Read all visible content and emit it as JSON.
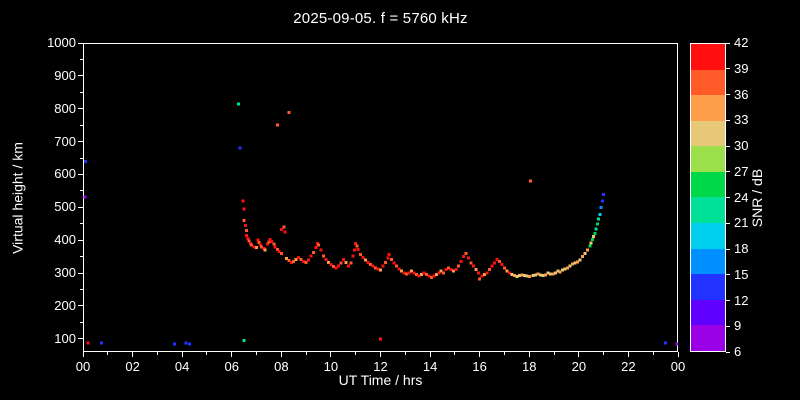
{
  "title": "2025-09-05. f = 5760 kHz",
  "colors": {
    "background": "#000000",
    "foreground": "#ffffff"
  },
  "chart_data": {
    "type": "scatter",
    "title": "2025-09-05. f = 5760 kHz",
    "xlabel": "UT Time / hrs",
    "ylabel": "Virtual height / km",
    "colorbar_label": "SNR / dB",
    "xlim": [
      0,
      24
    ],
    "ylim": [
      60,
      1000
    ],
    "grid": false,
    "x_ticks": {
      "values": [
        0,
        2,
        4,
        6,
        8,
        10,
        12,
        14,
        16,
        18,
        20,
        22,
        24
      ],
      "labels": [
        "00",
        "02",
        "04",
        "06",
        "08",
        "10",
        "12",
        "14",
        "16",
        "18",
        "20",
        "22",
        "00"
      ],
      "minor": [
        1,
        3,
        5,
        7,
        9,
        11,
        13,
        15,
        17,
        19,
        21,
        23
      ]
    },
    "y_ticks": {
      "values": [
        100,
        200,
        300,
        400,
        500,
        600,
        700,
        800,
        900,
        1000
      ],
      "labels": [
        "100",
        "200",
        "300",
        "400",
        "500",
        "600",
        "700",
        "800",
        "900",
        "1000"
      ],
      "minor": [
        150,
        250,
        350,
        450,
        550,
        650,
        750,
        850,
        950
      ]
    },
    "colorbar": {
      "min": 6,
      "max": 42,
      "tick_values": [
        6,
        9,
        12,
        15,
        18,
        21,
        24,
        27,
        30,
        33,
        36,
        39,
        42
      ],
      "tick_labels": [
        "6",
        "9",
        "12",
        "15",
        "18",
        "21",
        "24",
        "27",
        "30",
        "33",
        "36",
        "39",
        "42"
      ],
      "segments": [
        {
          "from": 6,
          "to": 9,
          "color": "#9a00e6"
        },
        {
          "from": 9,
          "to": 12,
          "color": "#6000ff"
        },
        {
          "from": 12,
          "to": 15,
          "color": "#2233ff"
        },
        {
          "from": 15,
          "to": 18,
          "color": "#0090ff"
        },
        {
          "from": 18,
          "to": 21,
          "color": "#00cfee"
        },
        {
          "from": 21,
          "to": 24,
          "color": "#00e096"
        },
        {
          "from": 24,
          "to": 27,
          "color": "#00d84a"
        },
        {
          "from": 27,
          "to": 30,
          "color": "#9be04a"
        },
        {
          "from": 30,
          "to": 33,
          "color": "#e6c878"
        },
        {
          "from": 33,
          "to": 36,
          "color": "#ff9e4a"
        },
        {
          "from": 36,
          "to": 39,
          "color": "#ff5a28"
        },
        {
          "from": 39,
          "to": 42,
          "color": "#ff0f0f"
        }
      ]
    },
    "points": [
      [
        0.08,
        532,
        8
      ],
      [
        0.1,
        640,
        14
      ],
      [
        0.2,
        88,
        40
      ],
      [
        0.75,
        88,
        13
      ],
      [
        3.7,
        85,
        13
      ],
      [
        4.15,
        88,
        13
      ],
      [
        4.3,
        85,
        13
      ],
      [
        6.28,
        815,
        22
      ],
      [
        6.33,
        680,
        13
      ],
      [
        6.5,
        95,
        21
      ],
      [
        7.85,
        750,
        36
      ],
      [
        8.3,
        788,
        38
      ],
      [
        12.0,
        100,
        40
      ],
      [
        18.05,
        580,
        37
      ],
      [
        23.5,
        88,
        13
      ],
      [
        23.95,
        85,
        7
      ],
      [
        6.45,
        520,
        40
      ],
      [
        6.5,
        495,
        40
      ],
      [
        6.5,
        460,
        38
      ],
      [
        6.55,
        445,
        40
      ],
      [
        6.6,
        430,
        37
      ],
      [
        6.6,
        415,
        40
      ],
      [
        6.65,
        405,
        40
      ],
      [
        6.7,
        398,
        38
      ],
      [
        6.75,
        390,
        40
      ],
      [
        6.8,
        385,
        37
      ],
      [
        6.9,
        380,
        40
      ],
      [
        7.0,
        378,
        34
      ],
      [
        7.05,
        400,
        40
      ],
      [
        7.1,
        393,
        37
      ],
      [
        7.15,
        385,
        40
      ],
      [
        7.2,
        380,
        37
      ],
      [
        7.3,
        375,
        40
      ],
      [
        7.35,
        370,
        34
      ],
      [
        7.45,
        388,
        40
      ],
      [
        7.5,
        395,
        37
      ],
      [
        7.55,
        402,
        40
      ],
      [
        7.6,
        396,
        40
      ],
      [
        7.7,
        388,
        37
      ],
      [
        7.75,
        380,
        40
      ],
      [
        7.85,
        372,
        37
      ],
      [
        7.9,
        365,
        40
      ],
      [
        8.0,
        360,
        37
      ],
      [
        8.0,
        432,
        40
      ],
      [
        8.1,
        440,
        38
      ],
      [
        8.15,
        425,
        40
      ],
      [
        8.2,
        345,
        34
      ],
      [
        8.3,
        338,
        37
      ],
      [
        8.4,
        332,
        40
      ],
      [
        8.5,
        336,
        37
      ],
      [
        8.6,
        342,
        34
      ],
      [
        8.7,
        347,
        40
      ],
      [
        8.8,
        342,
        37
      ],
      [
        8.9,
        336,
        40
      ],
      [
        9.0,
        332,
        37
      ],
      [
        9.1,
        340,
        40
      ],
      [
        9.2,
        352,
        40
      ],
      [
        9.3,
        362,
        38
      ],
      [
        9.4,
        378,
        40
      ],
      [
        9.45,
        390,
        40
      ],
      [
        9.5,
        385,
        37
      ],
      [
        9.6,
        370,
        40
      ],
      [
        9.7,
        352,
        37
      ],
      [
        9.8,
        342,
        40
      ],
      [
        9.9,
        332,
        34
      ],
      [
        10.0,
        326,
        40
      ],
      [
        10.1,
        320,
        37
      ],
      [
        10.2,
        316,
        40
      ],
      [
        10.3,
        321,
        40
      ],
      [
        10.4,
        330,
        37
      ],
      [
        10.5,
        342,
        40
      ],
      [
        10.6,
        333,
        34
      ],
      [
        10.7,
        322,
        40
      ],
      [
        10.8,
        330,
        37
      ],
      [
        10.9,
        352,
        40
      ],
      [
        10.95,
        370,
        40
      ],
      [
        11.0,
        390,
        40
      ],
      [
        11.05,
        382,
        38
      ],
      [
        11.1,
        372,
        40
      ],
      [
        11.2,
        357,
        37
      ],
      [
        11.3,
        347,
        40
      ],
      [
        11.4,
        340,
        34
      ],
      [
        11.5,
        332,
        40
      ],
      [
        11.6,
        326,
        37
      ],
      [
        11.7,
        321,
        40
      ],
      [
        11.8,
        316,
        37
      ],
      [
        11.9,
        312,
        40
      ],
      [
        12.0,
        310,
        34
      ],
      [
        12.1,
        322,
        40
      ],
      [
        12.2,
        332,
        37
      ],
      [
        12.3,
        346,
        40
      ],
      [
        12.35,
        356,
        40
      ],
      [
        12.45,
        342,
        37
      ],
      [
        12.55,
        330,
        40
      ],
      [
        12.65,
        321,
        37
      ],
      [
        12.75,
        312,
        40
      ],
      [
        12.85,
        306,
        34
      ],
      [
        12.95,
        301,
        40
      ],
      [
        13.05,
        297,
        37
      ],
      [
        13.15,
        301,
        40
      ],
      [
        13.25,
        306,
        34
      ],
      [
        13.35,
        301,
        40
      ],
      [
        13.45,
        296,
        37
      ],
      [
        13.55,
        291,
        40
      ],
      [
        13.65,
        296,
        34
      ],
      [
        13.75,
        301,
        40
      ],
      [
        13.85,
        296,
        37
      ],
      [
        13.95,
        291,
        40
      ],
      [
        14.05,
        287,
        37
      ],
      [
        14.15,
        291,
        40
      ],
      [
        14.25,
        296,
        34
      ],
      [
        14.35,
        301,
        40
      ],
      [
        14.45,
        306,
        34
      ],
      [
        14.55,
        301,
        37
      ],
      [
        14.65,
        311,
        40
      ],
      [
        14.75,
        316,
        37
      ],
      [
        14.85,
        311,
        40
      ],
      [
        14.95,
        306,
        34
      ],
      [
        15.05,
        311,
        40
      ],
      [
        15.15,
        321,
        37
      ],
      [
        15.25,
        336,
        40
      ],
      [
        15.35,
        351,
        40
      ],
      [
        15.45,
        360,
        38
      ],
      [
        15.55,
        346,
        40
      ],
      [
        15.65,
        331,
        37
      ],
      [
        15.75,
        321,
        40
      ],
      [
        15.85,
        311,
        34
      ],
      [
        15.95,
        301,
        40
      ],
      [
        16.0,
        282,
        37
      ],
      [
        16.1,
        291,
        40
      ],
      [
        16.2,
        296,
        34
      ],
      [
        16.3,
        301,
        40
      ],
      [
        16.4,
        311,
        37
      ],
      [
        16.5,
        321,
        40
      ],
      [
        16.6,
        331,
        40
      ],
      [
        16.7,
        341,
        40
      ],
      [
        16.8,
        336,
        38
      ],
      [
        16.9,
        326,
        40
      ],
      [
        17.0,
        316,
        37
      ],
      [
        17.1,
        306,
        34
      ],
      [
        17.2,
        301,
        40
      ],
      [
        17.3,
        296,
        31
      ],
      [
        17.4,
        293,
        34
      ],
      [
        17.5,
        290,
        31
      ],
      [
        17.6,
        292,
        31
      ],
      [
        17.7,
        295,
        34
      ],
      [
        17.8,
        293,
        31
      ],
      [
        17.9,
        291,
        31
      ],
      [
        18.0,
        290,
        34
      ],
      [
        18.15,
        292,
        31
      ],
      [
        18.25,
        295,
        31
      ],
      [
        18.35,
        297,
        34
      ],
      [
        18.45,
        295,
        31
      ],
      [
        18.55,
        293,
        31
      ],
      [
        18.65,
        295,
        34
      ],
      [
        18.75,
        300,
        31
      ],
      [
        18.85,
        298,
        31
      ],
      [
        18.95,
        297,
        34
      ],
      [
        19.05,
        301,
        31
      ],
      [
        19.15,
        306,
        31
      ],
      [
        19.25,
        304,
        34
      ],
      [
        19.35,
        309,
        31
      ],
      [
        19.45,
        313,
        31
      ],
      [
        19.55,
        316,
        34
      ],
      [
        19.65,
        321,
        31
      ],
      [
        19.75,
        327,
        34
      ],
      [
        19.85,
        330,
        31
      ],
      [
        19.95,
        334,
        34
      ],
      [
        20.05,
        340,
        31
      ],
      [
        20.15,
        350,
        34
      ],
      [
        20.25,
        360,
        31
      ],
      [
        20.35,
        370,
        34
      ],
      [
        20.45,
        383,
        25
      ],
      [
        20.5,
        392,
        31
      ],
      [
        20.55,
        402,
        25
      ],
      [
        20.6,
        412,
        31
      ],
      [
        20.65,
        421,
        25
      ],
      [
        20.7,
        434,
        22
      ],
      [
        20.75,
        449,
        25
      ],
      [
        20.8,
        464,
        22
      ],
      [
        20.85,
        479,
        19
      ],
      [
        20.9,
        499,
        16
      ],
      [
        20.95,
        519,
        13
      ],
      [
        21.0,
        539,
        13
      ]
    ]
  }
}
